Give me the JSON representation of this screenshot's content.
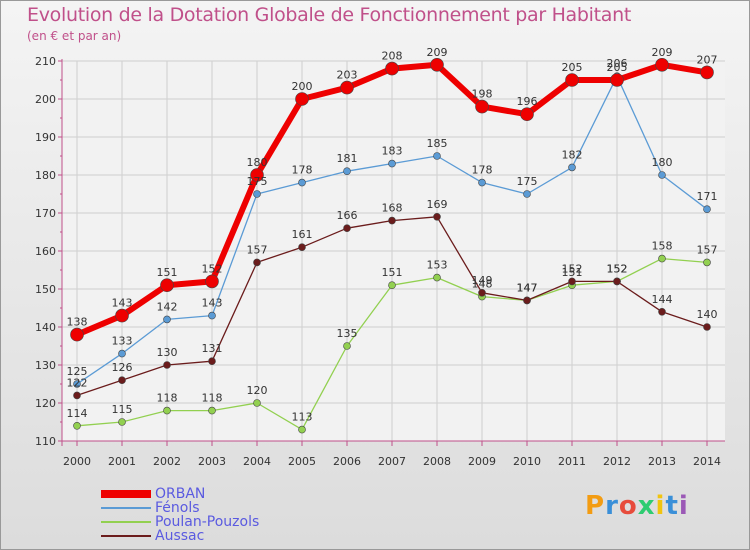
{
  "title": "Evolution de la Dotation Globale de Fonctionnement par Habitant",
  "subtitle": "(en € et par an)",
  "logo_text": "Proxiti",
  "chart_data": {
    "type": "line",
    "title": "Evolution de la Dotation Globale de Fonctionnement par Habitant",
    "ylabel": "(en € et par an)",
    "xlabel": "",
    "ylim": [
      110,
      210
    ],
    "yticks": [
      110,
      120,
      130,
      140,
      150,
      160,
      170,
      180,
      190,
      200,
      210
    ],
    "x": [
      "2000",
      "2001",
      "2002",
      "2003",
      "2004",
      "2005",
      "2006",
      "2007",
      "2008",
      "2009",
      "2010",
      "2011",
      "2012",
      "2013",
      "2014"
    ],
    "grid": true,
    "legend_position": "bottom-left",
    "series": [
      {
        "name": "ORBAN",
        "color": "#ee0000",
        "values": [
          138,
          143,
          151,
          152,
          180,
          200,
          203,
          208,
          209,
          198,
          196,
          205,
          205,
          209,
          207
        ]
      },
      {
        "name": "Fénols",
        "color": "#5b9bd5",
        "values": [
          125,
          133,
          142,
          143,
          175,
          178,
          181,
          183,
          185,
          178,
          175,
          182,
          206,
          180,
          171
        ]
      },
      {
        "name": "Poulan-Pouzols",
        "color": "#92d050",
        "values": [
          114,
          115,
          118,
          118,
          120,
          113,
          135,
          151,
          153,
          148,
          147,
          151,
          152,
          158,
          157
        ]
      },
      {
        "name": "Aussac",
        "color": "#6b1c1c",
        "values": [
          122,
          126,
          130,
          131,
          157,
          161,
          166,
          168,
          169,
          149,
          147,
          152,
          152,
          144,
          140
        ]
      }
    ]
  },
  "colors": {
    "title": "#c0508a",
    "legend_text": "#5a5ae0"
  }
}
